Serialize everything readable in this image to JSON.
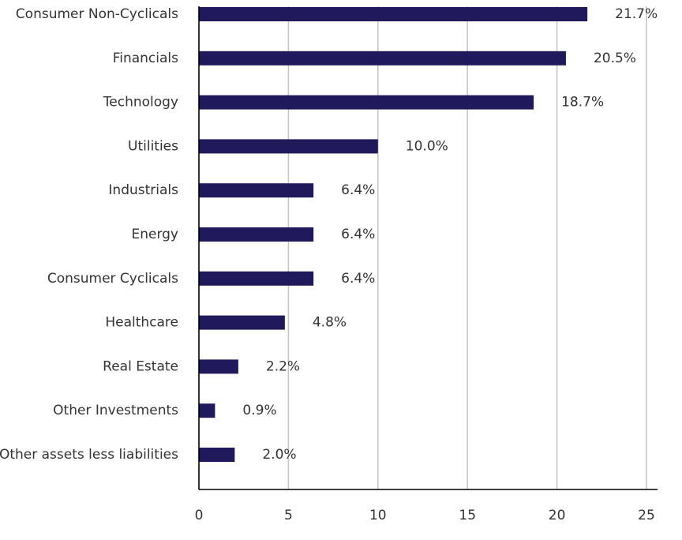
{
  "chart_data": {
    "type": "bar",
    "orientation": "horizontal",
    "title": "",
    "xlabel": "",
    "ylabel": "",
    "xlim": [
      0,
      25
    ],
    "x_ticks": [
      0,
      5,
      10,
      15,
      20,
      25
    ],
    "grid": "vertical",
    "bar_color": "#201a5c",
    "categories": [
      "Consumer Non-Cyclicals",
      "Financials",
      "Technology",
      "Utilities",
      "Industrials",
      "Energy",
      "Consumer Cyclicals",
      "Healthcare",
      "Real Estate",
      "Other Investments",
      "Other assets less liabilities"
    ],
    "values": [
      21.7,
      20.5,
      18.7,
      10.0,
      6.4,
      6.4,
      6.4,
      4.8,
      2.2,
      0.9,
      2.0
    ],
    "value_labels": [
      "21.7%",
      "20.5%",
      "18.7%",
      "10.0%",
      "6.4%",
      "6.4%",
      "6.4%",
      "4.8%",
      "2.2%",
      "0.9%",
      "2.0%"
    ]
  }
}
